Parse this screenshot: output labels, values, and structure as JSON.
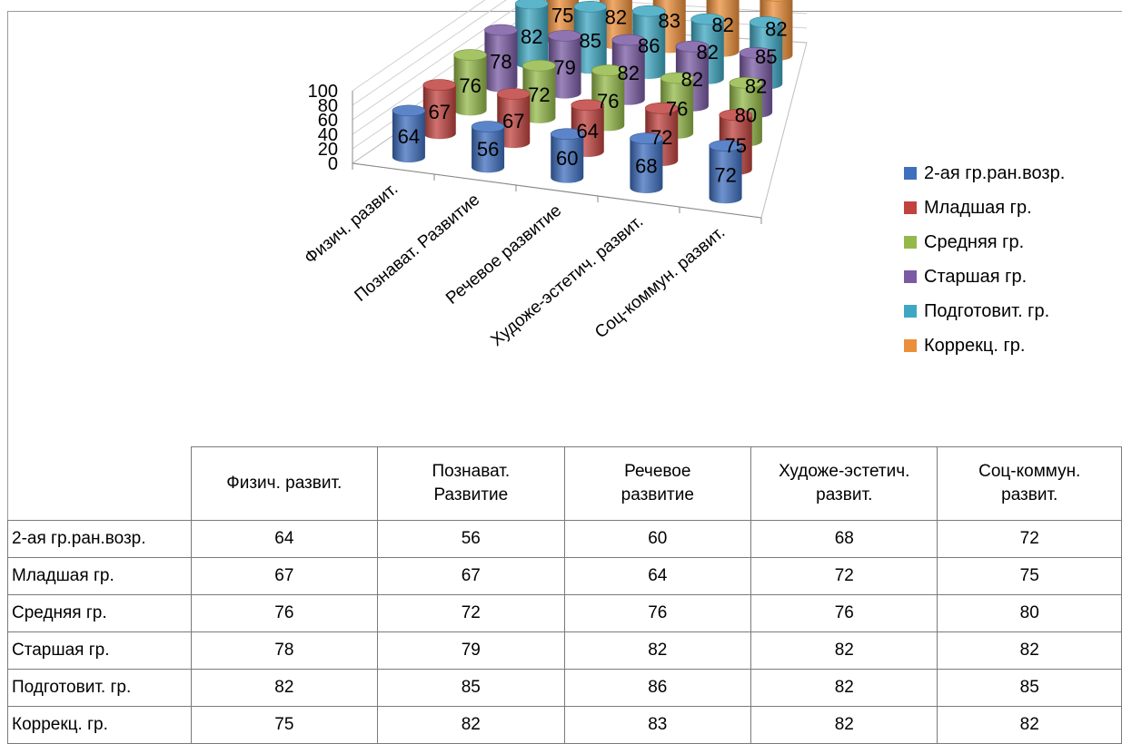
{
  "chart_data": {
    "type": "bar",
    "style": "3d-cylinder",
    "categories": [
      "Физич. развит.",
      "Познават. Развитие",
      "Речевое развитие",
      "Художе-эстетич. развит.",
      "Соц-коммун. развит."
    ],
    "table_headers": [
      "Физич. развит.",
      "Познават.\nРазвитие",
      "Речевое\nразвитие",
      "Художе-эстетич.\nразвит.",
      "Соц-коммун.\nразвит."
    ],
    "series": [
      {
        "name": "2-ая гр.ран.возр.",
        "color": "#3F6FBF",
        "values": [
          64,
          56,
          60,
          68,
          72
        ]
      },
      {
        "name": "Младшая гр.",
        "color": "#C0433F",
        "values": [
          67,
          67,
          64,
          72,
          75
        ]
      },
      {
        "name": "Средняя гр.",
        "color": "#94B94A",
        "values": [
          76,
          72,
          76,
          76,
          80
        ]
      },
      {
        "name": "Старшая гр.",
        "color": "#7A5BA3",
        "values": [
          78,
          79,
          82,
          82,
          82
        ]
      },
      {
        "name": "Подготовит. гр.",
        "color": "#3FA7C2",
        "values": [
          82,
          85,
          86,
          82,
          85
        ]
      },
      {
        "name": "Коррекц. гр.",
        "color": "#EB8F3A",
        "values": [
          75,
          82,
          83,
          82,
          82
        ]
      }
    ],
    "y_ticks": [
      "0",
      "20",
      "40",
      "60",
      "80",
      "100"
    ],
    "ylim": [
      0,
      100
    ],
    "title": "",
    "xlabel": "",
    "ylabel": "",
    "legend": "right",
    "grid": true,
    "data_table": true
  }
}
